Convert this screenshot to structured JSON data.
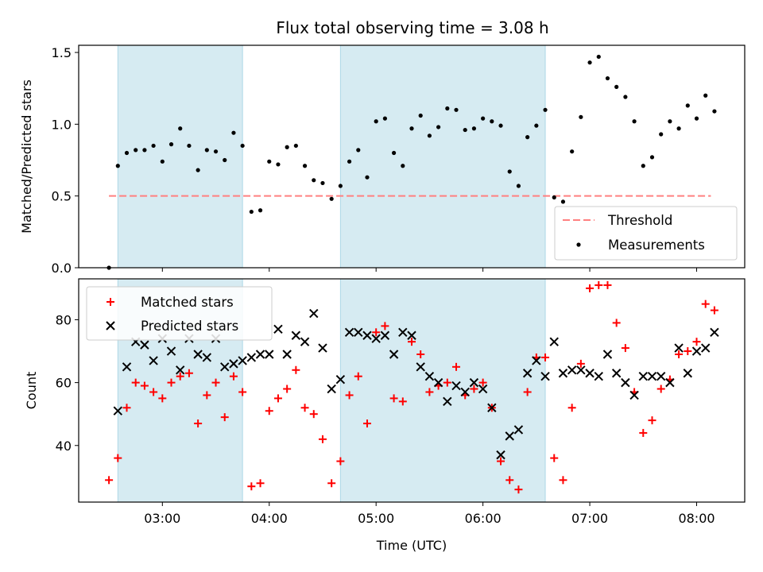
{
  "figure": {
    "title": "Flux total observing time = 3.08 h"
  },
  "chart_data": {
    "type": "scatter",
    "title": "Flux total observing time = 3.08 h",
    "xlabel": "Time (UTC)",
    "x_ticks": [
      "03:00",
      "04:00",
      "05:00",
      "06:00",
      "07:00",
      "08:00"
    ],
    "x_range": [
      "02:13",
      "08:27"
    ],
    "shaded_intervals": [
      [
        "02:35",
        "03:45"
      ],
      [
        "04:40",
        "06:35"
      ]
    ],
    "colors": {
      "shade": "#add8e6",
      "matched": "#ff0000",
      "predicted": "#000000",
      "threshold": "#ff8080",
      "measurement": "#000000"
    },
    "top": {
      "ylabel": "Matched/Predicted stars",
      "ylim": [
        0,
        1.55
      ],
      "y_ticks": [
        "0.0",
        "0.5",
        "1.0",
        "1.5"
      ],
      "legend": {
        "placement": "lower-right",
        "entries": [
          "Threshold",
          "Measurements"
        ]
      },
      "threshold": {
        "name": "Threshold",
        "value": 0.5,
        "x_start": "02:30",
        "x_end": "08:08"
      },
      "measurements": {
        "name": "Measurements",
        "x": [
          "02:30",
          "02:35",
          "02:40",
          "02:45",
          "02:50",
          "02:55",
          "03:00",
          "03:05",
          "03:10",
          "03:15",
          "03:20",
          "03:25",
          "03:30",
          "03:35",
          "03:40",
          "03:45",
          "03:50",
          "03:55",
          "04:00",
          "04:05",
          "04:10",
          "04:15",
          "04:20",
          "04:25",
          "04:30",
          "04:35",
          "04:40",
          "04:45",
          "04:50",
          "04:55",
          "05:00",
          "05:05",
          "05:10",
          "05:15",
          "05:20",
          "05:25",
          "05:30",
          "05:35",
          "05:40",
          "05:45",
          "05:50",
          "05:55",
          "06:00",
          "06:05",
          "06:10",
          "06:15",
          "06:20",
          "06:25",
          "06:30",
          "06:35",
          "06:40",
          "06:45",
          "06:50",
          "06:55",
          "07:00",
          "07:05",
          "07:10",
          "07:15",
          "07:20",
          "07:25",
          "07:30",
          "07:35",
          "07:40",
          "07:45",
          "07:50",
          "07:55",
          "08:00",
          "08:05",
          "08:10"
        ],
        "y": [
          0.0,
          0.71,
          0.8,
          0.82,
          0.82,
          0.85,
          0.74,
          0.86,
          0.97,
          0.85,
          0.68,
          0.82,
          0.81,
          0.75,
          0.94,
          0.85,
          0.39,
          0.4,
          0.74,
          0.72,
          0.84,
          0.85,
          0.71,
          0.61,
          0.59,
          0.48,
          0.57,
          0.74,
          0.82,
          0.63,
          1.02,
          1.04,
          0.8,
          0.71,
          0.97,
          1.06,
          0.92,
          0.98,
          1.11,
          1.1,
          0.96,
          0.97,
          1.04,
          1.02,
          0.99,
          0.67,
          0.57,
          0.91,
          0.99,
          1.1,
          0.49,
          0.46,
          0.81,
          1.05,
          1.43,
          1.47,
          1.32,
          1.26,
          1.19,
          1.02,
          0.71,
          0.77,
          0.93,
          1.02,
          0.97,
          1.13,
          1.04,
          1.2,
          1.09
        ]
      }
    },
    "bottom": {
      "ylabel": "Count",
      "ylim": [
        22,
        93
      ],
      "y_ticks": [
        "40",
        "60",
        "80"
      ],
      "legend": {
        "placement": "upper-left",
        "entries": [
          "Matched stars",
          "Predicted stars"
        ]
      },
      "series": [
        {
          "name": "Matched stars",
          "marker": "plus",
          "x": [
            "02:30",
            "02:35",
            "02:40",
            "02:45",
            "02:50",
            "02:55",
            "03:00",
            "03:05",
            "03:10",
            "03:15",
            "03:20",
            "03:25",
            "03:30",
            "03:35",
            "03:40",
            "03:45",
            "03:50",
            "03:55",
            "04:00",
            "04:05",
            "04:10",
            "04:15",
            "04:20",
            "04:25",
            "04:30",
            "04:35",
            "04:40",
            "04:45",
            "04:50",
            "04:55",
            "05:00",
            "05:05",
            "05:10",
            "05:15",
            "05:20",
            "05:25",
            "05:30",
            "05:35",
            "05:40",
            "05:45",
            "05:50",
            "05:55",
            "06:00",
            "06:05",
            "06:10",
            "06:15",
            "06:20",
            "06:25",
            "06:30",
            "06:35",
            "06:40",
            "06:45",
            "06:50",
            "06:55",
            "07:00",
            "07:05",
            "07:10",
            "07:15",
            "07:20",
            "07:25",
            "07:30",
            "07:35",
            "07:40",
            "07:45",
            "07:50",
            "07:55",
            "08:00",
            "08:05",
            "08:10"
          ],
          "y": [
            29,
            36,
            52,
            60,
            59,
            57,
            55,
            60,
            62,
            63,
            47,
            56,
            60,
            49,
            62,
            57,
            27,
            28,
            51,
            55,
            58,
            64,
            52,
            50,
            42,
            28,
            35,
            56,
            62,
            47,
            76,
            78,
            55,
            54,
            73,
            69,
            57,
            59,
            60,
            65,
            56,
            58,
            60,
            52,
            35,
            29,
            26,
            57,
            68,
            68,
            36,
            29,
            52,
            66,
            90,
            91,
            91,
            79,
            71,
            57,
            44,
            48,
            58,
            61,
            69,
            70,
            73,
            85,
            83
          ]
        },
        {
          "name": "Predicted stars",
          "marker": "x",
          "x": [
            "02:35",
            "02:40",
            "02:45",
            "02:50",
            "02:55",
            "03:00",
            "03:05",
            "03:10",
            "03:15",
            "03:20",
            "03:25",
            "03:30",
            "03:35",
            "03:40",
            "03:45",
            "03:50",
            "03:55",
            "04:00",
            "04:05",
            "04:10",
            "04:15",
            "04:20",
            "04:25",
            "04:30",
            "04:35",
            "04:40",
            "04:45",
            "04:50",
            "04:55",
            "05:00",
            "05:05",
            "05:10",
            "05:15",
            "05:20",
            "05:25",
            "05:30",
            "05:35",
            "05:40",
            "05:45",
            "05:50",
            "05:55",
            "06:00",
            "06:05",
            "06:10",
            "06:15",
            "06:20",
            "06:25",
            "06:30",
            "06:35",
            "06:40",
            "06:45",
            "06:50",
            "06:55",
            "07:00",
            "07:05",
            "07:10",
            "07:15",
            "07:20",
            "07:25",
            "07:30",
            "07:35",
            "07:40",
            "07:45",
            "07:50",
            "07:55",
            "08:00",
            "08:05",
            "08:10"
          ],
          "y": [
            51,
            65,
            73,
            72,
            67,
            74,
            70,
            64,
            74,
            69,
            68,
            74,
            65,
            66,
            67,
            68,
            69,
            69,
            77,
            69,
            75,
            73,
            82,
            71,
            58,
            61,
            76,
            76,
            75,
            74,
            75,
            69,
            76,
            75,
            65,
            62,
            60,
            54,
            59,
            57,
            60,
            58,
            52,
            37,
            43,
            45,
            63,
            67,
            62,
            73,
            63,
            64,
            64,
            63,
            62,
            69,
            63,
            60,
            56,
            62,
            62,
            62,
            60,
            71,
            63,
            70,
            71,
            76
          ]
        }
      ]
    }
  }
}
